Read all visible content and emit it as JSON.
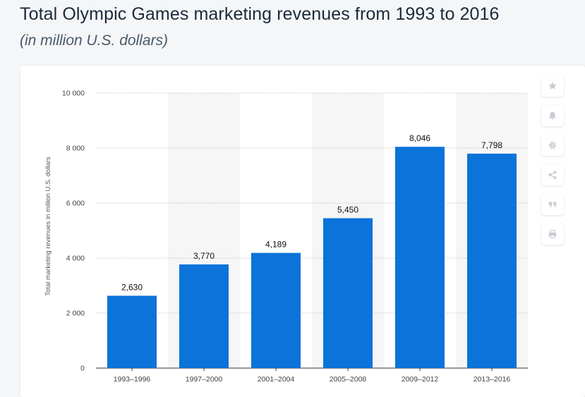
{
  "header": {
    "title": "Total Olympic Games marketing revenues from 1993 to 2016",
    "subtitle": "(in million U.S. dollars)"
  },
  "toolbar": {
    "icons": [
      "star-icon",
      "bell-icon",
      "gear-icon",
      "share-icon",
      "quote-icon",
      "print-icon"
    ]
  },
  "chart_data": {
    "type": "bar",
    "title": "Total Olympic Games marketing revenues from 1993 to 2016",
    "subtitle": "(in million U.S. dollars)",
    "xlabel": "",
    "ylabel": "Total marketing revenues in million U.S. dollars",
    "categories": [
      "1993–1996",
      "1997–2000",
      "2001–2004",
      "2005–2008",
      "2009–2012",
      "2013–2016"
    ],
    "values": [
      2630,
      3770,
      4189,
      5450,
      8046,
      7798
    ],
    "value_labels": [
      "2,630",
      "3,770",
      "4,189",
      "5,450",
      "8,046",
      "7,798"
    ],
    "ylim": [
      0,
      10000
    ],
    "yticks": [
      0,
      2000,
      4000,
      6000,
      8000,
      10000
    ],
    "ytick_labels": [
      "0",
      "2 000",
      "4 000",
      "6 000",
      "8 000",
      "10 000"
    ],
    "grid": true,
    "legend": "none",
    "bar_color": "#0b73d9",
    "band_color": "#f6f6f6"
  }
}
